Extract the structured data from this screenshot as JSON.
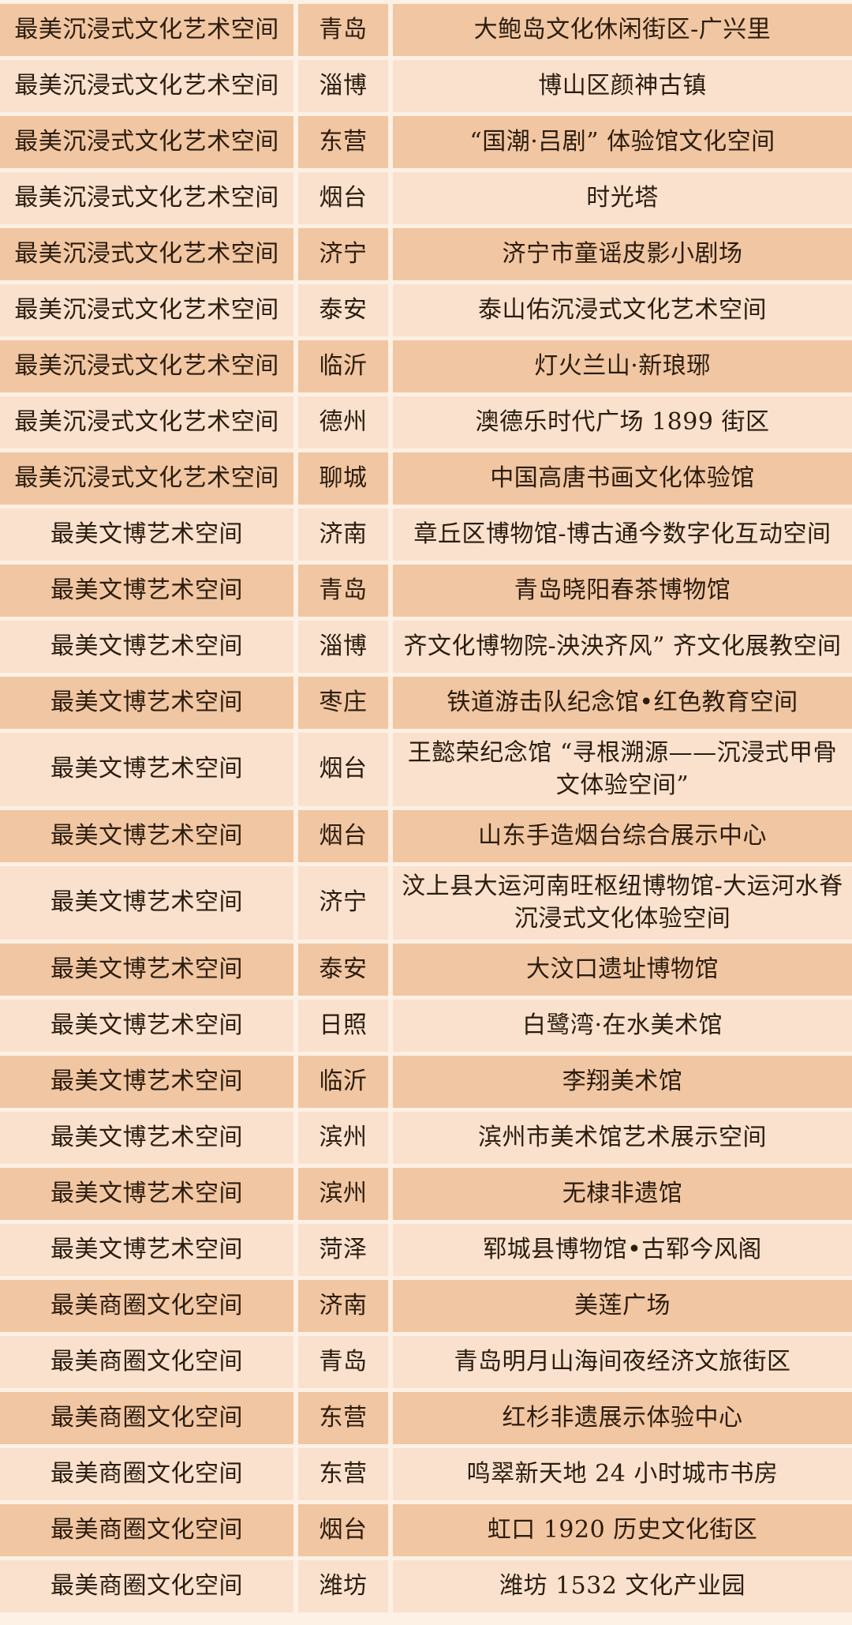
{
  "colors": {
    "row_dark": "#f1c6a2",
    "row_light": "#f9e1ce",
    "background": "#fdf0e4",
    "text": "#2b1c0e"
  },
  "table": {
    "columns": [
      "category",
      "city",
      "space_name"
    ],
    "rows": [
      {
        "category": "最美沉浸式文化艺术空间",
        "city": "青岛",
        "name": "大鲍岛文化休闲街区-广兴里"
      },
      {
        "category": "最美沉浸式文化艺术空间",
        "city": "淄博",
        "name": "博山区颜神古镇"
      },
      {
        "category": "最美沉浸式文化艺术空间",
        "city": "东营",
        "name": "“国潮·吕剧” 体验馆文化空间"
      },
      {
        "category": "最美沉浸式文化艺术空间",
        "city": "烟台",
        "name": "时光塔"
      },
      {
        "category": "最美沉浸式文化艺术空间",
        "city": "济宁",
        "name": "济宁市童谣皮影小剧场"
      },
      {
        "category": "最美沉浸式文化艺术空间",
        "city": "泰安",
        "name": "泰山佑沉浸式文化艺术空间"
      },
      {
        "category": "最美沉浸式文化艺术空间",
        "city": "临沂",
        "name": "灯火兰山·新琅琊"
      },
      {
        "category": "最美沉浸式文化艺术空间",
        "city": "德州",
        "name": "澳德乐时代广场 1899 街区"
      },
      {
        "category": "最美沉浸式文化艺术空间",
        "city": "聊城",
        "name": "中国高唐书画文化体验馆"
      },
      {
        "category": "最美文博艺术空间",
        "city": "济南",
        "name": "章丘区博物馆-博古通今数字化互动空间"
      },
      {
        "category": "最美文博艺术空间",
        "city": "青岛",
        "name": "青岛晓阳春茶博物馆"
      },
      {
        "category": "最美文博艺术空间",
        "city": "淄博",
        "name": "齐文化博物院-泱泱齐风” 齐文化展教空间"
      },
      {
        "category": "最美文博艺术空间",
        "city": "枣庄",
        "name": "铁道游击队纪念馆•红色教育空间"
      },
      {
        "category": "最美文博艺术空间",
        "city": "烟台",
        "name": "王懿荣纪念馆 “寻根溯源——沉浸式甲骨文体验空间”"
      },
      {
        "category": "最美文博艺术空间",
        "city": "烟台",
        "name": "山东手造烟台综合展示中心"
      },
      {
        "category": "最美文博艺术空间",
        "city": "济宁",
        "name": "汶上县大运河南旺枢纽博物馆-大运河水脊沉浸式文化体验空间"
      },
      {
        "category": "最美文博艺术空间",
        "city": "泰安",
        "name": "大汶口遗址博物馆"
      },
      {
        "category": "最美文博艺术空间",
        "city": "日照",
        "name": "白鹭湾·在水美术馆"
      },
      {
        "category": "最美文博艺术空间",
        "city": "临沂",
        "name": "李翔美术馆"
      },
      {
        "category": "最美文博艺术空间",
        "city": "滨州",
        "name": "滨州市美术馆艺术展示空间"
      },
      {
        "category": "最美文博艺术空间",
        "city": "滨州",
        "name": "无棣非遗馆"
      },
      {
        "category": "最美文博艺术空间",
        "city": "菏泽",
        "name": "郓城县博物馆•古郓今风阁"
      },
      {
        "category": "最美商圈文化空间",
        "city": "济南",
        "name": "美莲广场"
      },
      {
        "category": "最美商圈文化空间",
        "city": "青岛",
        "name": "青岛明月山海间夜经济文旅街区"
      },
      {
        "category": "最美商圈文化空间",
        "city": "东营",
        "name": "红杉非遗展示体验中心"
      },
      {
        "category": "最美商圈文化空间",
        "city": "东营",
        "name": "鸣翠新天地 24 小时城市书房"
      },
      {
        "category": "最美商圈文化空间",
        "city": "烟台",
        "name": "虹口 1920 历史文化街区"
      },
      {
        "category": "最美商圈文化空间",
        "city": "潍坊",
        "name": "潍坊 1532 文化产业园"
      }
    ]
  }
}
